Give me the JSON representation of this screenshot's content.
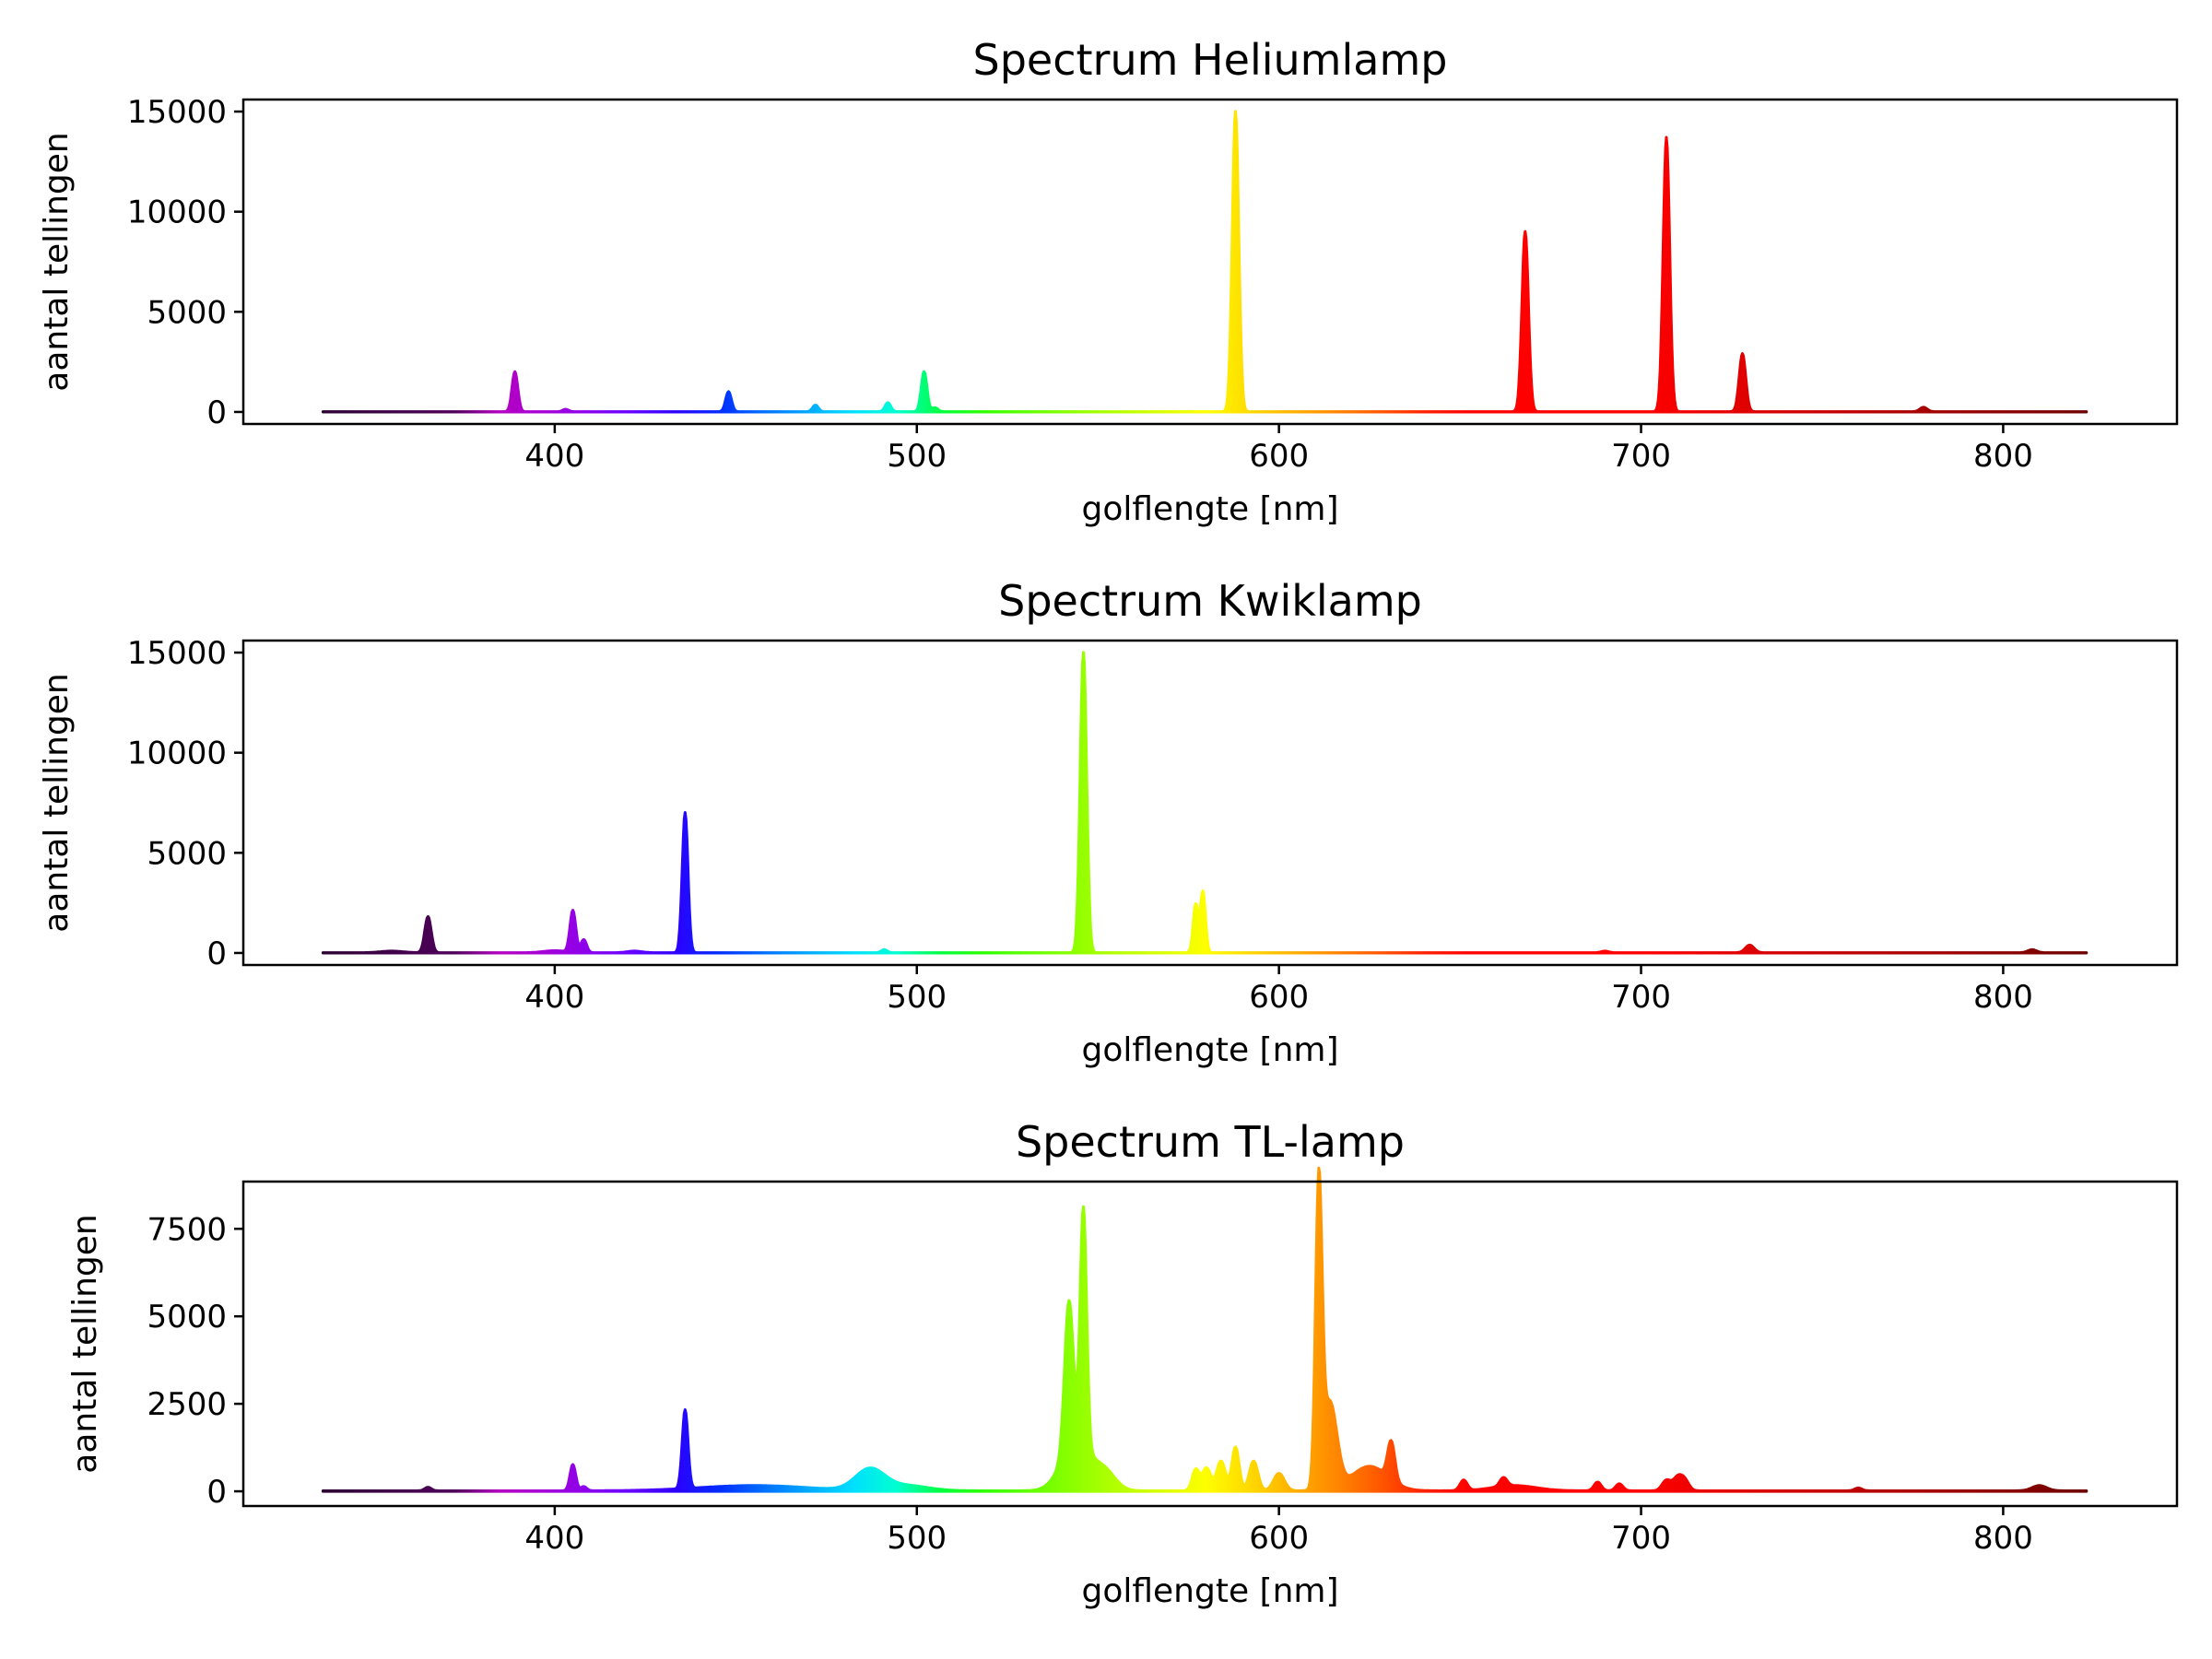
{
  "chart_data": [
    {
      "type": "area",
      "title": "Spectrum Heliumlamp",
      "xlabel": "golflengte [nm]",
      "ylabel": "aantal tellingen",
      "xlim": [
        314,
        848
      ],
      "ylim": [
        -600,
        15600
      ],
      "x_range": [
        336,
        823
      ],
      "xticks": [
        400,
        500,
        600,
        700,
        800
      ],
      "yticks": [
        0,
        5000,
        10000,
        15000
      ],
      "grid": false,
      "color_scale": "wavelength rainbow",
      "peaks": [
        {
          "x": 389,
          "y": 2000,
          "w": 0.8
        },
        {
          "x": 403,
          "y": 120,
          "w": 0.8
        },
        {
          "x": 448,
          "y": 1000,
          "w": 0.8
        },
        {
          "x": 472,
          "y": 330,
          "w": 0.8
        },
        {
          "x": 492,
          "y": 450,
          "w": 0.8
        },
        {
          "x": 502,
          "y": 2000,
          "w": 0.8
        },
        {
          "x": 505,
          "y": 200,
          "w": 0.8
        },
        {
          "x": 588,
          "y": 15000,
          "w": 0.9
        },
        {
          "x": 668,
          "y": 9000,
          "w": 0.9
        },
        {
          "x": 707,
          "y": 13700,
          "w": 0.9
        },
        {
          "x": 728,
          "y": 2900,
          "w": 0.9
        },
        {
          "x": 778,
          "y": 220,
          "w": 1.0
        }
      ]
    },
    {
      "type": "area",
      "title": "Spectrum Kwiklamp",
      "xlabel": "golflengte [nm]",
      "ylabel": "aantal tellingen",
      "xlim": [
        314,
        848
      ],
      "ylim": [
        -600,
        15600
      ],
      "x_range": [
        336,
        823
      ],
      "xticks": [
        400,
        500,
        600,
        700,
        800
      ],
      "yticks": [
        0,
        5000,
        10000,
        15000
      ],
      "grid": false,
      "color_scale": "wavelength rainbow",
      "peaks": [
        {
          "x": 365,
          "y": 1800,
          "w": 0.9
        },
        {
          "x": 355,
          "y": 80,
          "w": 3
        },
        {
          "x": 400,
          "y": 100,
          "w": 3
        },
        {
          "x": 405,
          "y": 2100,
          "w": 0.8
        },
        {
          "x": 408,
          "y": 650,
          "w": 0.8
        },
        {
          "x": 422,
          "y": 80,
          "w": 2
        },
        {
          "x": 436,
          "y": 7000,
          "w": 0.8
        },
        {
          "x": 491,
          "y": 150,
          "w": 0.8
        },
        {
          "x": 546,
          "y": 15000,
          "w": 0.9
        },
        {
          "x": 577,
          "y": 2400,
          "w": 0.7
        },
        {
          "x": 579,
          "y": 3050,
          "w": 0.7
        },
        {
          "x": 690,
          "y": 80,
          "w": 1
        },
        {
          "x": 730,
          "y": 380,
          "w": 1.2
        },
        {
          "x": 808,
          "y": 150,
          "w": 1.2
        }
      ]
    },
    {
      "type": "area",
      "title": "Spectrum TL-lamp",
      "xlabel": "golflengte [nm]",
      "ylabel": "aantal tellingen",
      "xlim": [
        314,
        848
      ],
      "ylim": [
        -420,
        8850
      ],
      "x_range": [
        336,
        823
      ],
      "xticks": [
        400,
        500,
        600,
        700,
        800
      ],
      "yticks": [
        0,
        2500,
        5000,
        7500
      ],
      "grid": false,
      "color_scale": "wavelength rainbow",
      "peaks": [
        {
          "x": 365,
          "y": 100,
          "w": 0.9
        },
        {
          "x": 405,
          "y": 750,
          "w": 0.8
        },
        {
          "x": 408,
          "y": 120,
          "w": 0.8
        },
        {
          "x": 436,
          "y": 2250,
          "w": 0.8
        },
        {
          "x": 455,
          "y": 150,
          "w": 15
        },
        {
          "x": 487,
          "y": 600,
          "w": 4
        },
        {
          "x": 497,
          "y": 150,
          "w": 6
        },
        {
          "x": 542,
          "y": 4200,
          "w": 1.2
        },
        {
          "x": 546,
          "y": 6800,
          "w": 0.9
        },
        {
          "x": 544,
          "y": 1400,
          "w": 4
        },
        {
          "x": 552,
          "y": 500,
          "w": 3
        },
        {
          "x": 577,
          "y": 600,
          "w": 1
        },
        {
          "x": 580,
          "y": 650,
          "w": 1.2
        },
        {
          "x": 584,
          "y": 850,
          "w": 1.2
        },
        {
          "x": 588,
          "y": 1250,
          "w": 1
        },
        {
          "x": 593,
          "y": 850,
          "w": 1.2
        },
        {
          "x": 600,
          "y": 500,
          "w": 1.5
        },
        {
          "x": 611,
          "y": 8400,
          "w": 0.9
        },
        {
          "x": 614,
          "y": 2500,
          "w": 2
        },
        {
          "x": 625,
          "y": 700,
          "w": 5
        },
        {
          "x": 631,
          "y": 1100,
          "w": 1
        },
        {
          "x": 651,
          "y": 300,
          "w": 1
        },
        {
          "x": 662,
          "y": 250,
          "w": 1
        },
        {
          "x": 665,
          "y": 150,
          "w": 6
        },
        {
          "x": 688,
          "y": 250,
          "w": 1
        },
        {
          "x": 694,
          "y": 200,
          "w": 1
        },
        {
          "x": 707,
          "y": 300,
          "w": 1.2
        },
        {
          "x": 710,
          "y": 350,
          "w": 1.2
        },
        {
          "x": 712,
          "y": 300,
          "w": 1.2
        },
        {
          "x": 760,
          "y": 80,
          "w": 1
        },
        {
          "x": 810,
          "y": 150,
          "w": 2
        }
      ]
    }
  ]
}
